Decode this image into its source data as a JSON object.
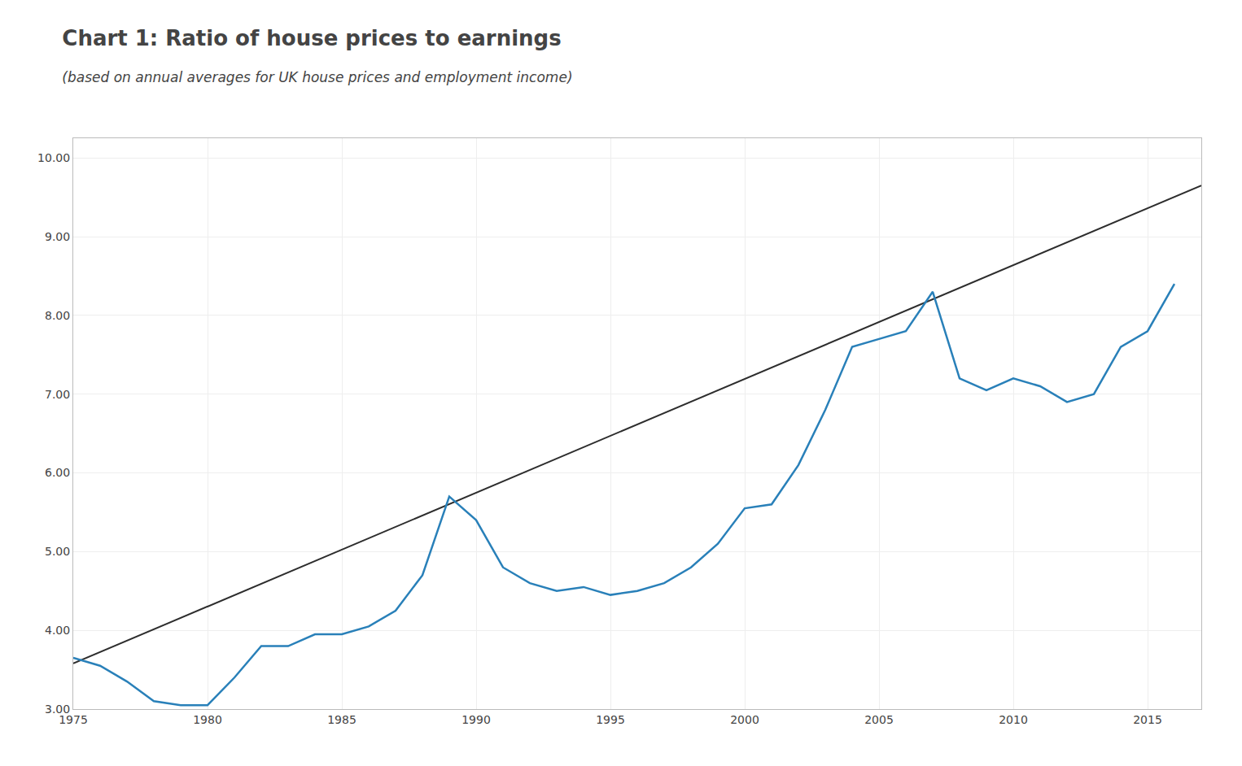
{
  "chart_data": {
    "type": "line",
    "title": "Chart 1: Ratio of house prices to earnings",
    "subtitle": "(based on annual averages for UK house prices and employment income)",
    "x": [
      1975,
      1976,
      1977,
      1978,
      1979,
      1980,
      1981,
      1982,
      1983,
      1984,
      1985,
      1986,
      1987,
      1988,
      1989,
      1990,
      1991,
      1992,
      1993,
      1994,
      1995,
      1996,
      1997,
      1998,
      1999,
      2000,
      2001,
      2002,
      2003,
      2004,
      2005,
      2006,
      2007,
      2008,
      2009,
      2010,
      2011,
      2012,
      2013,
      2014,
      2015,
      2016
    ],
    "series": [
      {
        "color": "#2980b9",
        "values": [
          3.65,
          3.55,
          3.35,
          3.1,
          3.05,
          3.05,
          3.4,
          3.8,
          3.8,
          3.95,
          3.95,
          4.05,
          4.25,
          4.7,
          5.7,
          5.4,
          4.8,
          4.6,
          4.5,
          4.55,
          4.45,
          4.5,
          4.6,
          4.8,
          5.1,
          5.55,
          5.6,
          6.1,
          6.8,
          7.6,
          7.7,
          7.8,
          8.3,
          7.2,
          7.05,
          7.2,
          7.1,
          6.9,
          7.0,
          7.6,
          7.8,
          8.4
        ]
      },
      {
        "color": "#2d2d2d",
        "x": [
          1975,
          2017
        ],
        "values": [
          3.58,
          9.65
        ]
      }
    ],
    "xlim": [
      1975,
      2017
    ],
    "ylim": [
      3.0,
      10.25
    ],
    "xticks": [
      1975,
      1980,
      1985,
      1990,
      1995,
      2000,
      2005,
      2010,
      2015
    ],
    "yticks": [
      {
        "value": 3.0,
        "label": "3.00"
      },
      {
        "value": 4.0,
        "label": "4.00"
      },
      {
        "value": 5.0,
        "label": "5.00"
      },
      {
        "value": 6.0,
        "label": "6.00"
      },
      {
        "value": 7.0,
        "label": "7.00"
      },
      {
        "value": 8.0,
        "label": "8.00"
      },
      {
        "value": 9.0,
        "label": "9.00"
      },
      {
        "value": 10.0,
        "label": "10.00"
      }
    ],
    "grid": true
  }
}
